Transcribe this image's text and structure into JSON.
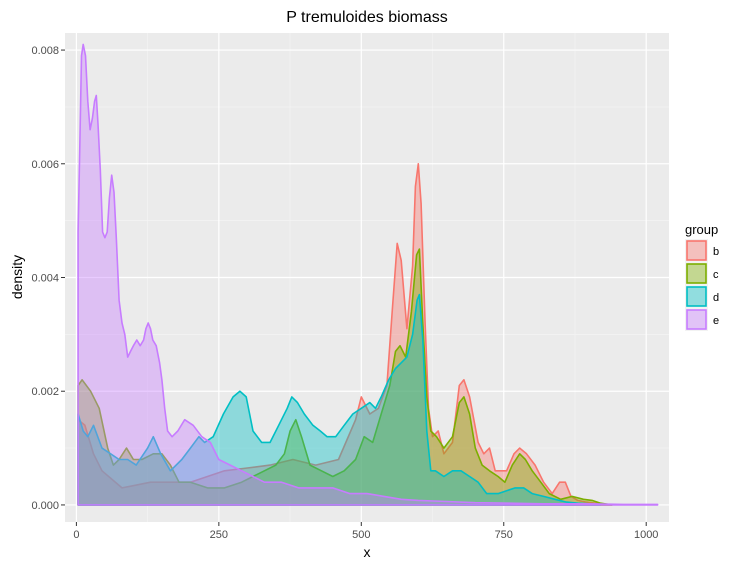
{
  "chart_data": {
    "type": "area",
    "title": "P tremuloides biomass",
    "xlabel": "x",
    "ylabel": "density",
    "xlim": [
      -20,
      1040
    ],
    "ylim": [
      -0.0003,
      0.0083
    ],
    "xticks": [
      0,
      250,
      500,
      750,
      1000
    ],
    "xtick_labels": [
      "0",
      "250",
      "500",
      "750",
      "1000"
    ],
    "yticks": [
      0.0,
      0.002,
      0.004,
      0.006,
      0.008
    ],
    "ytick_labels": [
      "0.000",
      "0.002",
      "0.004",
      "0.006",
      "0.008"
    ],
    "grid": true,
    "legend": {
      "title": "group",
      "position": "right"
    },
    "series": [
      {
        "name": "b",
        "color": "#F8766D",
        "points": [
          [
            3,
            0
          ],
          [
            3,
            0.0015
          ],
          [
            15,
            0.0014
          ],
          [
            30,
            0.0009
          ],
          [
            45,
            0.0006
          ],
          [
            80,
            0.0003
          ],
          [
            130,
            0.0004
          ],
          [
            200,
            0.0004
          ],
          [
            260,
            0.0006
          ],
          [
            300,
            0.00065
          ],
          [
            340,
            0.0007
          ],
          [
            380,
            0.0008
          ],
          [
            420,
            0.0007
          ],
          [
            460,
            0.0008
          ],
          [
            490,
            0.0015
          ],
          [
            500,
            0.0019
          ],
          [
            515,
            0.0016
          ],
          [
            530,
            0.0017
          ],
          [
            545,
            0.0021
          ],
          [
            555,
            0.0035
          ],
          [
            563,
            0.0046
          ],
          [
            570,
            0.0043
          ],
          [
            580,
            0.0031
          ],
          [
            590,
            0.0042
          ],
          [
            595,
            0.0056
          ],
          [
            600,
            0.006
          ],
          [
            605,
            0.0053
          ],
          [
            612,
            0.0032
          ],
          [
            618,
            0.0017
          ],
          [
            625,
            0.0012
          ],
          [
            635,
            0.0013
          ],
          [
            645,
            0.0009
          ],
          [
            660,
            0.0011
          ],
          [
            672,
            0.0021
          ],
          [
            680,
            0.0022
          ],
          [
            690,
            0.0019
          ],
          [
            705,
            0.0011
          ],
          [
            715,
            0.0009
          ],
          [
            725,
            0.001
          ],
          [
            735,
            0.0006
          ],
          [
            755,
            0.0006
          ],
          [
            768,
            0.0009
          ],
          [
            778,
            0.001
          ],
          [
            790,
            0.0009
          ],
          [
            805,
            0.0007
          ],
          [
            820,
            0.0004
          ],
          [
            835,
            0.0002
          ],
          [
            848,
            0.0004
          ],
          [
            858,
            0.0004
          ],
          [
            868,
            0.00015
          ],
          [
            880,
            8e-05
          ],
          [
            895,
            5e-05
          ],
          [
            920,
            2e-05
          ],
          [
            940,
            0
          ]
        ]
      },
      {
        "name": "c",
        "color": "#7CAE00",
        "points": [
          [
            3,
            0
          ],
          [
            3,
            0.0021
          ],
          [
            10,
            0.0022
          ],
          [
            25,
            0.002
          ],
          [
            40,
            0.0017
          ],
          [
            55,
            0.001
          ],
          [
            65,
            0.0007
          ],
          [
            75,
            0.0008
          ],
          [
            88,
            0.001
          ],
          [
            100,
            0.0008
          ],
          [
            115,
            0.0008
          ],
          [
            135,
            0.0009
          ],
          [
            150,
            0.0009
          ],
          [
            165,
            0.0007
          ],
          [
            180,
            0.0004
          ],
          [
            200,
            0.0004
          ],
          [
            230,
            0.0003
          ],
          [
            260,
            0.0003
          ],
          [
            290,
            0.0004
          ],
          [
            310,
            0.0005
          ],
          [
            330,
            0.0006
          ],
          [
            350,
            0.0007
          ],
          [
            365,
            0.0009
          ],
          [
            375,
            0.0013
          ],
          [
            385,
            0.0015
          ],
          [
            395,
            0.0012
          ],
          [
            410,
            0.0007
          ],
          [
            430,
            0.0006
          ],
          [
            450,
            0.0005
          ],
          [
            470,
            0.0006
          ],
          [
            490,
            0.0008
          ],
          [
            505,
            0.0012
          ],
          [
            520,
            0.0011
          ],
          [
            535,
            0.0016
          ],
          [
            550,
            0.0021
          ],
          [
            560,
            0.0027
          ],
          [
            568,
            0.0028
          ],
          [
            578,
            0.0026
          ],
          [
            588,
            0.0034
          ],
          [
            597,
            0.0044
          ],
          [
            602,
            0.0045
          ],
          [
            608,
            0.0032
          ],
          [
            615,
            0.0019
          ],
          [
            622,
            0.0013
          ],
          [
            632,
            0.0012
          ],
          [
            645,
            0.001
          ],
          [
            660,
            0.0012
          ],
          [
            672,
            0.0018
          ],
          [
            680,
            0.0019
          ],
          [
            690,
            0.0016
          ],
          [
            700,
            0.001
          ],
          [
            712,
            0.0007
          ],
          [
            725,
            0.0006
          ],
          [
            740,
            0.0005
          ],
          [
            752,
            0.0004
          ],
          [
            765,
            0.0007
          ],
          [
            778,
            0.0009
          ],
          [
            788,
            0.0008
          ],
          [
            800,
            0.0006
          ],
          [
            815,
            0.0004
          ],
          [
            830,
            0.0002
          ],
          [
            850,
            0.0001
          ],
          [
            870,
            0.00015
          ],
          [
            890,
            0.0001
          ],
          [
            905,
            8e-05
          ],
          [
            920,
            3e-05
          ],
          [
            940,
            0
          ]
        ]
      },
      {
        "name": "d",
        "color": "#00BFC4",
        "points": [
          [
            3,
            0
          ],
          [
            3,
            0.0016
          ],
          [
            12,
            0.0013
          ],
          [
            20,
            0.0012
          ],
          [
            30,
            0.0014
          ],
          [
            45,
            0.001
          ],
          [
            60,
            0.0009
          ],
          [
            75,
            0.0008
          ],
          [
            90,
            0.0008
          ],
          [
            105,
            0.0007
          ],
          [
            125,
            0.001
          ],
          [
            135,
            0.0012
          ],
          [
            148,
            0.0009
          ],
          [
            165,
            0.0006
          ],
          [
            185,
            0.0008
          ],
          [
            200,
            0.001
          ],
          [
            215,
            0.0012
          ],
          [
            225,
            0.0011
          ],
          [
            240,
            0.0012
          ],
          [
            258,
            0.0016
          ],
          [
            275,
            0.0019
          ],
          [
            287,
            0.002
          ],
          [
            298,
            0.0019
          ],
          [
            310,
            0.0013
          ],
          [
            325,
            0.0011
          ],
          [
            340,
            0.0011
          ],
          [
            355,
            0.0014
          ],
          [
            370,
            0.0017
          ],
          [
            378,
            0.0019
          ],
          [
            388,
            0.0018
          ],
          [
            400,
            0.0016
          ],
          [
            415,
            0.0014
          ],
          [
            428,
            0.0013
          ],
          [
            440,
            0.0012
          ],
          [
            455,
            0.0012
          ],
          [
            470,
            0.0014
          ],
          [
            485,
            0.0016
          ],
          [
            500,
            0.0017
          ],
          [
            515,
            0.0018
          ],
          [
            525,
            0.0017
          ],
          [
            535,
            0.0019
          ],
          [
            548,
            0.0022
          ],
          [
            560,
            0.0024
          ],
          [
            570,
            0.0025
          ],
          [
            580,
            0.0026
          ],
          [
            590,
            0.003
          ],
          [
            598,
            0.0036
          ],
          [
            602,
            0.0037
          ],
          [
            608,
            0.0029
          ],
          [
            615,
            0.0013
          ],
          [
            622,
            0.0006
          ],
          [
            630,
            0.0006
          ],
          [
            645,
            0.0005
          ],
          [
            660,
            0.0006
          ],
          [
            675,
            0.0006
          ],
          [
            690,
            0.0005
          ],
          [
            705,
            0.0004
          ],
          [
            720,
            0.0002
          ],
          [
            740,
            0.0002
          ],
          [
            755,
            0.00025
          ],
          [
            770,
            0.0003
          ],
          [
            785,
            0.0003
          ],
          [
            800,
            0.0002
          ],
          [
            820,
            0.00015
          ],
          [
            840,
            0.0001
          ],
          [
            860,
            5e-05
          ],
          [
            880,
            3e-05
          ],
          [
            900,
            2e-05
          ],
          [
            920,
            0
          ]
        ]
      },
      {
        "name": "e",
        "color": "#C77CFF",
        "points": [
          [
            3,
            0
          ],
          [
            3,
            0.0048
          ],
          [
            6,
            0.0063
          ],
          [
            9,
            0.0079
          ],
          [
            12,
            0.0081
          ],
          [
            16,
            0.0079
          ],
          [
            20,
            0.0071
          ],
          [
            24,
            0.0066
          ],
          [
            28,
            0.0068
          ],
          [
            32,
            0.0071
          ],
          [
            35,
            0.0072
          ],
          [
            38,
            0.0067
          ],
          [
            42,
            0.0059
          ],
          [
            46,
            0.0048
          ],
          [
            50,
            0.0047
          ],
          [
            54,
            0.0048
          ],
          [
            58,
            0.0054
          ],
          [
            62,
            0.0058
          ],
          [
            66,
            0.0055
          ],
          [
            70,
            0.0047
          ],
          [
            75,
            0.0036
          ],
          [
            80,
            0.0032
          ],
          [
            85,
            0.003
          ],
          [
            90,
            0.0026
          ],
          [
            95,
            0.0027
          ],
          [
            100,
            0.0028
          ],
          [
            106,
            0.0029
          ],
          [
            112,
            0.0028
          ],
          [
            118,
            0.0029
          ],
          [
            122,
            0.0031
          ],
          [
            126,
            0.0032
          ],
          [
            130,
            0.0031
          ],
          [
            134,
            0.0029
          ],
          [
            140,
            0.0028
          ],
          [
            146,
            0.0025
          ],
          [
            150,
            0.0022
          ],
          [
            155,
            0.0017
          ],
          [
            160,
            0.0013
          ],
          [
            168,
            0.0012
          ],
          [
            178,
            0.0013
          ],
          [
            190,
            0.0015
          ],
          [
            205,
            0.0014
          ],
          [
            220,
            0.0012
          ],
          [
            235,
            0.0011
          ],
          [
            250,
            0.0008
          ],
          [
            270,
            0.0007
          ],
          [
            290,
            0.0006
          ],
          [
            310,
            0.0005
          ],
          [
            330,
            0.0004
          ],
          [
            360,
            0.0004
          ],
          [
            390,
            0.0003
          ],
          [
            420,
            0.0003
          ],
          [
            450,
            0.0003
          ],
          [
            480,
            0.0002
          ],
          [
            510,
            0.0002
          ],
          [
            540,
            0.00015
          ],
          [
            570,
            0.0001
          ],
          [
            600,
            8e-05
          ],
          [
            650,
            6e-05
          ],
          [
            700,
            4e-05
          ],
          [
            760,
            3e-05
          ],
          [
            820,
            2e-05
          ],
          [
            900,
            2e-05
          ],
          [
            960,
            1e-05
          ],
          [
            1020,
            1e-05
          ],
          [
            1020,
            0
          ]
        ]
      }
    ]
  }
}
